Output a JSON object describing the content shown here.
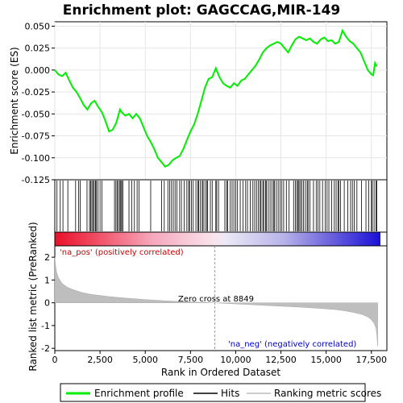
{
  "chart_data": {
    "type": "line",
    "title": "Enrichment plot: GAGCCAG,MIR-149",
    "xlabel": "Rank in Ordered Dataset",
    "ylabel_top": "Enrichment score (ES)",
    "ylabel_bottom": "Ranked list metric (PreRanked)",
    "xlim": [
      0,
      18000
    ],
    "x_ticks": [
      0,
      2500,
      5000,
      7500,
      10000,
      12500,
      15000,
      17500
    ],
    "x_tick_labels": [
      "0",
      "2,500",
      "5,000",
      "7,500",
      "10,000",
      "12,500",
      "15,000",
      "17,500"
    ],
    "es_ylim": [
      -0.125,
      0.055
    ],
    "es_ticks": [
      0.05,
      0.025,
      0.0,
      -0.025,
      -0.05,
      -0.075,
      -0.1,
      -0.125
    ],
    "es_tick_labels": [
      "0.050",
      "0.025",
      "0.000",
      "-0.025",
      "-0.050",
      "-0.075",
      "-0.100",
      "-0.125"
    ],
    "metric_ylim": [
      -2.1,
      2.5
    ],
    "metric_ticks": [
      2,
      1,
      0,
      -1,
      -2
    ],
    "metric_tick_labels": [
      "2",
      "1",
      "0",
      "-1",
      "-2"
    ],
    "enrichment_profile": {
      "name": "Enrichment profile",
      "color": "#00ee00",
      "x": [
        0,
        200,
        400,
        600,
        800,
        1000,
        1200,
        1400,
        1600,
        1800,
        2000,
        2200,
        2400,
        2600,
        2800,
        3000,
        3200,
        3400,
        3600,
        3700,
        3900,
        4100,
        4300,
        4500,
        4700,
        4900,
        5100,
        5300,
        5500,
        5700,
        5900,
        6100,
        6300,
        6500,
        6700,
        6900,
        7100,
        7300,
        7500,
        7700,
        7900,
        8100,
        8300,
        8500,
        8700,
        8900,
        9100,
        9300,
        9500,
        9700,
        9900,
        10100,
        10300,
        10500,
        10700,
        10900,
        11100,
        11300,
        11500,
        11700,
        11900,
        12100,
        12300,
        12500,
        12700,
        12900,
        13100,
        13300,
        13500,
        13700,
        13900,
        14100,
        14300,
        14500,
        14700,
        14900,
        15100,
        15300,
        15500,
        15700,
        15900,
        16100,
        16300,
        16500,
        16700,
        16900,
        17100,
        17300,
        17500,
        17600,
        17700,
        17800
      ],
      "y": [
        0.0,
        -0.005,
        -0.007,
        -0.003,
        -0.012,
        -0.02,
        -0.025,
        -0.032,
        -0.04,
        -0.045,
        -0.038,
        -0.035,
        -0.042,
        -0.048,
        -0.058,
        -0.07,
        -0.068,
        -0.06,
        -0.045,
        -0.048,
        -0.052,
        -0.05,
        -0.055,
        -0.05,
        -0.055,
        -0.065,
        -0.075,
        -0.082,
        -0.09,
        -0.1,
        -0.105,
        -0.11,
        -0.108,
        -0.103,
        -0.1,
        -0.098,
        -0.09,
        -0.08,
        -0.07,
        -0.062,
        -0.05,
        -0.035,
        -0.02,
        -0.01,
        -0.008,
        0.002,
        -0.008,
        -0.015,
        -0.018,
        -0.02,
        -0.015,
        -0.018,
        -0.012,
        -0.01,
        -0.005,
        0.0,
        0.005,
        0.012,
        0.02,
        0.025,
        0.028,
        0.03,
        0.032,
        0.03,
        0.025,
        0.02,
        0.028,
        0.035,
        0.038,
        0.036,
        0.034,
        0.036,
        0.032,
        0.03,
        0.035,
        0.037,
        0.033,
        0.034,
        0.03,
        0.032,
        0.045,
        0.038,
        0.033,
        0.03,
        0.025,
        0.02,
        0.01,
        0.0,
        -0.005,
        -0.006,
        0.008,
        0.004
      ]
    },
    "hits": {
      "name": "Hits",
      "color": "#000000",
      "x": [
        120,
        300,
        450,
        720,
        1150,
        1320,
        1400,
        1780,
        1920,
        1980,
        2050,
        2120,
        2180,
        2250,
        2300,
        2380,
        2500,
        2600,
        3300,
        3380,
        3450,
        3520,
        3600,
        3650,
        3700,
        3760,
        4100,
        4250,
        4400,
        4550,
        4650,
        5300,
        5900,
        6050,
        6250,
        6350,
        6450,
        6550,
        6650,
        6750,
        6900,
        7000,
        7150,
        7300,
        7400,
        7450,
        7550,
        7650,
        7800,
        7900,
        7950,
        8050,
        8150,
        8200,
        8300,
        8400,
        8450,
        8600,
        8700,
        8900,
        8950,
        9050,
        9400,
        9500,
        9550,
        9700,
        9800,
        9900,
        10000,
        10100,
        10250,
        10400,
        10550,
        10650,
        10800,
        10950,
        11050,
        11150,
        11250,
        11350,
        11400,
        11500,
        11550,
        11650,
        11700,
        11800,
        11900,
        12000,
        12100,
        12150,
        12250,
        12350,
        12450,
        12550,
        12650,
        12800,
        12950,
        13200,
        13300,
        13380,
        13450,
        13500,
        13580,
        13650,
        13750,
        13850,
        13950,
        14000,
        14100,
        14300,
        14450,
        14550,
        14650,
        14800,
        14950,
        15050,
        15150,
        15300,
        15450,
        15550,
        15650,
        15700,
        15800,
        16000,
        16200,
        16350,
        16450,
        16550,
        16700,
        16950,
        17200,
        17350,
        17500,
        17550,
        17650,
        17750,
        17800
      ]
    },
    "ranking_metric": {
      "name": "Ranking metric scores",
      "color": "#bebebe",
      "x": [
        0,
        50,
        100,
        200,
        400,
        700,
        1000,
        1500,
        2000,
        3000,
        4000,
        5000,
        6000,
        7000,
        8000,
        8849,
        9500,
        10500,
        11500,
        12500,
        13500,
        14500,
        15500,
        16000,
        16500,
        17000,
        17300,
        17500,
        17650,
        17750,
        17800,
        17850
      ],
      "y": [
        2.0,
        1.6,
        1.35,
        1.1,
        0.85,
        0.68,
        0.58,
        0.45,
        0.37,
        0.27,
        0.2,
        0.14,
        0.09,
        0.05,
        0.02,
        0.0,
        -0.03,
        -0.07,
        -0.11,
        -0.15,
        -0.19,
        -0.24,
        -0.3,
        -0.35,
        -0.42,
        -0.52,
        -0.62,
        -0.75,
        -0.9,
        -1.1,
        -1.4,
        -1.9
      ]
    },
    "zero_cross_x": 8849,
    "annotations": {
      "pos_label": "'na_pos' (positively correlated)",
      "neg_label": "'na_neg' (negatively correlated)",
      "zero_cross": "Zero cross at 8849",
      "pos_color": "#cc0000",
      "neg_color": "#0000cc"
    },
    "legend": {
      "placement": "bottom",
      "items": [
        "Enrichment profile",
        "Hits",
        "Ranking metric scores"
      ]
    },
    "colors": {
      "bar_red": "#e8102a",
      "bar_blue": "#1a10d8",
      "grid": "#e6e6e6"
    }
  }
}
